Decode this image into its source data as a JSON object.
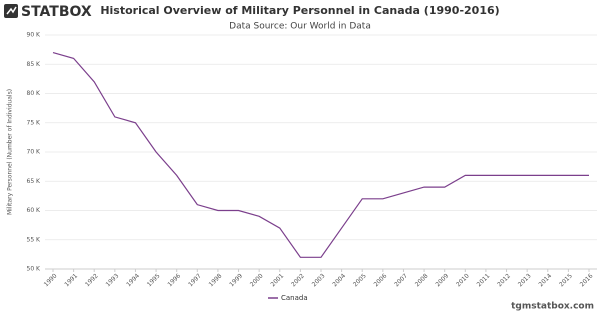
{
  "logo": "STATBOX",
  "footer": "tgmstatbox.com",
  "chart_data": {
    "type": "line",
    "title": "Historical Overview of Military Personnel in Canada (1990-2016)",
    "subtitle": "Data Source: Our World in Data",
    "y_label": "Military Personnel (Number of Individuals)",
    "categories": [
      "1990",
      "1991",
      "1992",
      "1993",
      "1994",
      "1995",
      "1996",
      "1997",
      "1998",
      "1999",
      "2000",
      "2001",
      "2002",
      "2003",
      "2004",
      "2005",
      "2006",
      "2007",
      "2008",
      "2009",
      "2010",
      "2011",
      "2012",
      "2013",
      "2014",
      "2015",
      "2016"
    ],
    "series": [
      {
        "name": "Canada",
        "color": "#7b3f8c",
        "values": [
          87000,
          86000,
          82000,
          76000,
          75000,
          70000,
          66000,
          61000,
          60000,
          60000,
          59000,
          57000,
          52000,
          52000,
          57000,
          62000,
          62000,
          63000,
          64000,
          64000,
          66000,
          66000,
          66000,
          66000,
          66000,
          66000,
          66000
        ]
      }
    ],
    "ylim": [
      50000,
      90000
    ],
    "yticks": [
      {
        "value": 50000,
        "label": "50 K"
      },
      {
        "value": 55000,
        "label": "55 K"
      },
      {
        "value": 60000,
        "label": "60 K"
      },
      {
        "value": 65000,
        "label": "65 K"
      },
      {
        "value": 70000,
        "label": "70 K"
      },
      {
        "value": 75000,
        "label": "75 K"
      },
      {
        "value": 80000,
        "label": "80 K"
      },
      {
        "value": 85000,
        "label": "85 K"
      },
      {
        "value": 90000,
        "label": "90 K"
      }
    ],
    "grid": true,
    "legend": "bottom"
  }
}
